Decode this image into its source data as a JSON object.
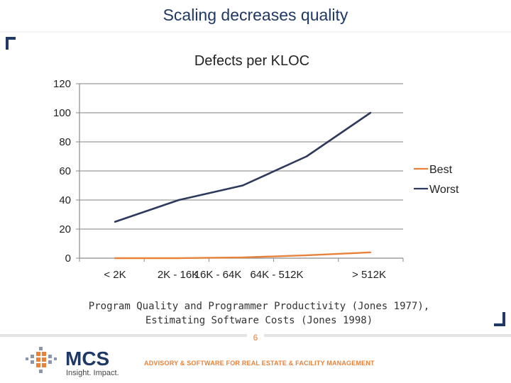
{
  "slide": {
    "title": "Scaling decreases quality",
    "source_line1": "Program Quality and Programmer Productivity (Jones 1977),",
    "source_line2": "Estimating Software Costs (Jones 1998)",
    "page_number": "6"
  },
  "footer": {
    "logo_name": "MCS",
    "logo_tagline": "Insight. Impact.",
    "tagline": "ADVISORY & SOFTWARE FOR REAL ESTATE & FACILITY MANAGEMENT",
    "accent_color": "#e8823a",
    "brand_color": "#1f3864"
  },
  "chart_data": {
    "type": "line",
    "title": "Defects per KLOC",
    "xlabel": "",
    "ylabel": "",
    "categories": [
      "< 2K",
      "2K - 16K",
      "16K - 64K",
      "64K - 512K",
      "> 512K"
    ],
    "ylim": [
      0,
      120
    ],
    "yticks": [
      0,
      20,
      40,
      60,
      80,
      100,
      120
    ],
    "grid": true,
    "legend": "right",
    "series": [
      {
        "name": "Best",
        "color": "#e8823a",
        "values": [
          0,
          0,
          0.5,
          2,
          4
        ]
      },
      {
        "name": "Worst",
        "color": "#2e3a5c",
        "values": [
          25,
          40,
          50,
          70,
          100
        ]
      }
    ]
  }
}
